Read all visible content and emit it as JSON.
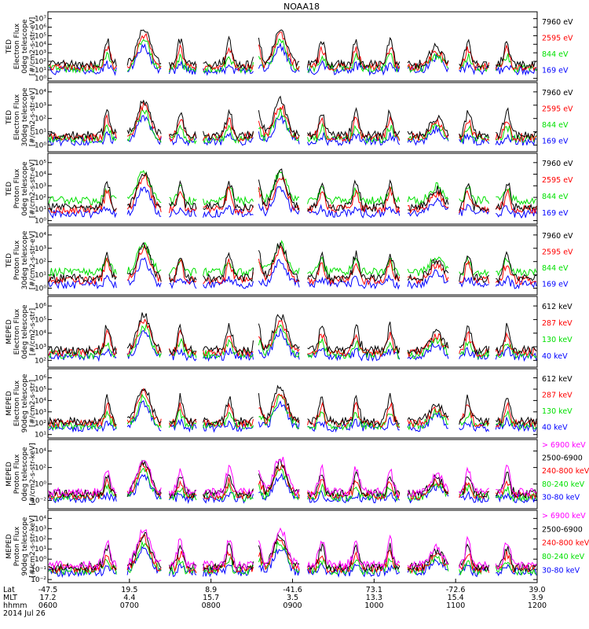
{
  "title": "NOAA18",
  "colors": {
    "blue": "#0000ff",
    "red": "#ff0000",
    "green": "#00e000",
    "black": "#000000",
    "magenta": "#ff00ff"
  },
  "chart_data": [
    {
      "type": "line",
      "ylabel": [
        "TED",
        "Electron Flux",
        "0deg telescope",
        "[#/cm2-s-str-eV]"
      ],
      "ylim": [
        1,
        10000000
      ],
      "yscale": "log",
      "ytick_labels": [
        "10⁰",
        "10¹",
        "10²",
        "10³",
        "10⁴",
        "10⁵",
        "10⁶",
        "10⁷"
      ],
      "series": [
        {
          "name": "7960 eV",
          "color": "black"
        },
        {
          "name": "2595 eV",
          "color": "red"
        },
        {
          "name": "844 eV",
          "color": "green"
        },
        {
          "name": "169 eV",
          "color": "blue"
        }
      ]
    },
    {
      "type": "line",
      "ylabel": [
        "TED",
        "Electron Flux",
        "30deg telescope",
        "[#/cm2-s-str-eV]"
      ],
      "ylim": [
        1,
        100000
      ],
      "yscale": "log",
      "ytick_labels": [
        "10⁰",
        "10¹",
        "10²",
        "10³",
        "10⁴"
      ],
      "series": [
        {
          "name": "7960 eV",
          "color": "black"
        },
        {
          "name": "2595 eV",
          "color": "red"
        },
        {
          "name": "844 eV",
          "color": "green"
        },
        {
          "name": "169 eV",
          "color": "blue"
        }
      ]
    },
    {
      "type": "line",
      "ylabel": [
        "TED",
        "Proton Flux",
        "0deg telescope",
        "[#/cm2-s-str-eV]"
      ],
      "ylim": [
        1,
        100000
      ],
      "yscale": "log",
      "ytick_labels": [
        "10⁰",
        "10¹",
        "10²",
        "10³",
        "10⁴",
        "10⁵"
      ],
      "series": [
        {
          "name": "7960 eV",
          "color": "black"
        },
        {
          "name": "2595 eV",
          "color": "red"
        },
        {
          "name": "844 eV",
          "color": "green"
        },
        {
          "name": "169 eV",
          "color": "blue"
        }
      ]
    },
    {
      "type": "line",
      "ylabel": [
        "TED",
        "Proton Flux",
        "30deg telescope",
        "[#/cm2-s-str-eV]"
      ],
      "ylim": [
        1,
        100000
      ],
      "yscale": "log",
      "ytick_labels": [
        "10⁰",
        "10¹",
        "10²",
        "10³",
        "10⁴"
      ],
      "series": [
        {
          "name": "7960 eV",
          "color": "black"
        },
        {
          "name": "2595 eV",
          "color": "red"
        },
        {
          "name": "844 eV",
          "color": "green"
        },
        {
          "name": "169 eV",
          "color": "blue"
        }
      ]
    },
    {
      "type": "line",
      "ylabel": [
        "MEPED",
        "Electron Flux",
        "0deg telescope",
        "[#/cm2-s-str]"
      ],
      "ylim": [
        100,
        100000000
      ],
      "yscale": "log",
      "ytick_labels": [
        "10²",
        "10³",
        "10⁴",
        "10⁵",
        "10⁶"
      ],
      "series": [
        {
          "name": "612 keV",
          "color": "black"
        },
        {
          "name": "287 keV",
          "color": "red"
        },
        {
          "name": "130 keV",
          "color": "green"
        },
        {
          "name": "40 keV",
          "color": "blue"
        }
      ]
    },
    {
      "type": "line",
      "ylabel": [
        "MEPED",
        "Electron Flux",
        "90deg telescope",
        "[#/cm2-s-str]"
      ],
      "ylim": [
        1,
        10000000
      ],
      "yscale": "log",
      "ytick_labels": [
        "10¹",
        "10²",
        "10³",
        "10⁴",
        "10⁵",
        "10⁶"
      ],
      "series": [
        {
          "name": "612 keV",
          "color": "black"
        },
        {
          "name": "287 keV",
          "color": "red"
        },
        {
          "name": "130 keV",
          "color": "green"
        },
        {
          "name": "40 keV",
          "color": "blue"
        }
      ]
    },
    {
      "type": "line",
      "ylabel": [
        "MEPED",
        "Proton Flux",
        "0deg telescope",
        "[#/cm2-s-str-keV]"
      ],
      "ylim": [
        0.001,
        1000000
      ],
      "yscale": "log",
      "ytick_labels": [
        "10⁻²",
        "10⁰",
        "10²",
        "10⁴"
      ],
      "series": [
        {
          "name": "> 6900 keV",
          "color": "magenta"
        },
        {
          "name": "2500-6900",
          "color": "black"
        },
        {
          "name": "240-800 keV",
          "color": "red"
        },
        {
          "name": "80-240 keV",
          "color": "green"
        },
        {
          "name": "30-80 keV",
          "color": "blue"
        }
      ]
    },
    {
      "type": "line",
      "ylabel": [
        "MEPED",
        "Proton Flux",
        "90deg telescope",
        "[#/cm2-s-str-keV]"
      ],
      "ylim": [
        0.001,
        1000000
      ],
      "yscale": "log",
      "ytick_labels": [
        "10⁻²",
        "10⁻¹",
        "10⁰",
        "10¹",
        "10²",
        "10³",
        "10⁴"
      ],
      "series": [
        {
          "name": "> 6900 keV",
          "color": "magenta"
        },
        {
          "name": "2500-6900",
          "color": "black"
        },
        {
          "name": "240-800 keV",
          "color": "red"
        },
        {
          "name": "80-240 keV",
          "color": "green"
        },
        {
          "name": "30-80 keV",
          "color": "blue"
        }
      ]
    }
  ],
  "x_axis": {
    "row_labels": [
      "Lat",
      "MLT",
      "hhmm"
    ],
    "date": "2014 Jul 26",
    "ticks": [
      {
        "lat": "-47.5",
        "mlt": "17.2",
        "hhmm": "0600"
      },
      {
        "lat": "19.5",
        "mlt": "4.4",
        "hhmm": "0700"
      },
      {
        "lat": "8.9",
        "mlt": "15.7",
        "hhmm": "0800"
      },
      {
        "lat": "-41.6",
        "mlt": "3.5",
        "hhmm": "0900"
      },
      {
        "lat": "73.1",
        "mlt": "13.3",
        "hhmm": "1000"
      },
      {
        "lat": "-72.6",
        "mlt": "15.4",
        "hhmm": "1100"
      },
      {
        "lat": "39.0",
        "mlt": "3.9",
        "hhmm": "1200"
      }
    ]
  }
}
